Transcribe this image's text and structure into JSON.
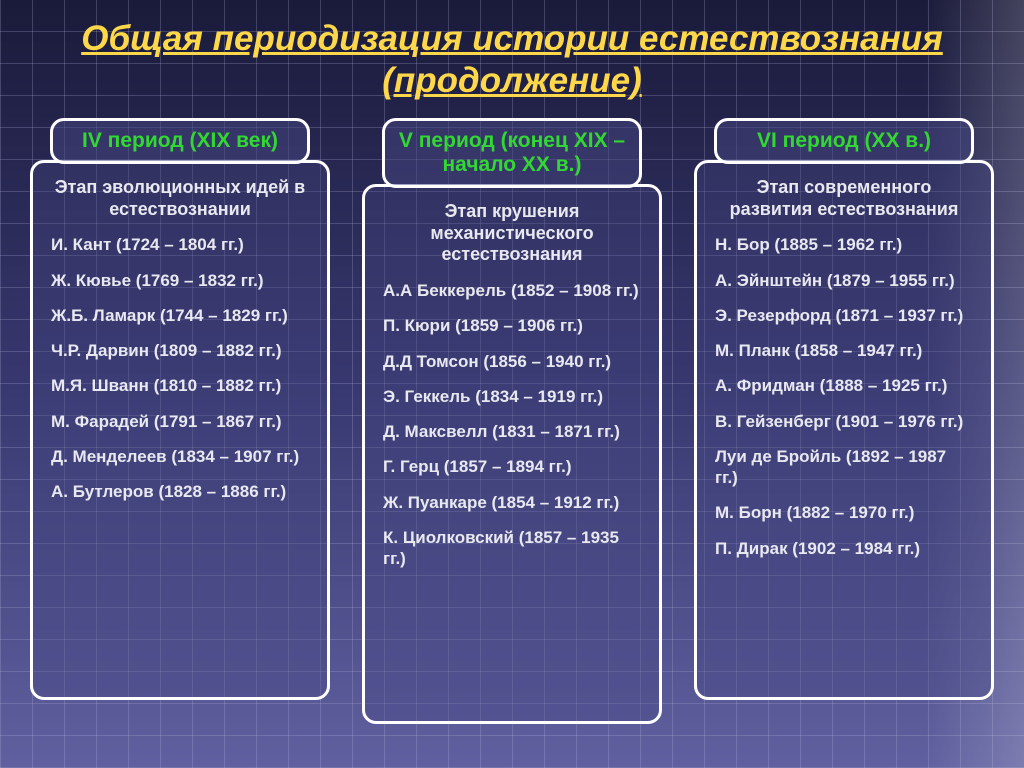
{
  "title": "Общая периодизация истории естествознания (продолжение)",
  "colors": {
    "title": "#ffd84a",
    "header_text": "#32d832",
    "body_text": "#e8e8f0",
    "border": "#ffffff"
  },
  "columns": [
    {
      "header": "IV период (XIX век)",
      "stage": "Этап эволюционных идей в естествознании",
      "items": [
        "И. Кант (1724 – 1804 гг.)",
        "Ж. Кювье (1769 – 1832 гг.)",
        "Ж.Б. Ламарк (1744 – 1829 гг.)",
        "Ч.Р. Дарвин (1809 – 1882 гг.)",
        "М.Я. Шванн (1810 – 1882 гг.)",
        "М. Фарадей (1791 – 1867 гг.)",
        "Д. Менделеев (1834 – 1907 гг.)",
        "А. Бутлеров (1828 – 1886 гг.)"
      ]
    },
    {
      "header": "V период (конец XIX – начало XX в.)",
      "stage": "Этап крушения механистического естествознания",
      "items": [
        "А.А Беккерель (1852 – 1908 гг.)",
        "П. Кюри (1859 – 1906 гг.)",
        "Д.Д Томсон (1856 – 1940 гг.)",
        "Э. Геккель (1834 – 1919 гг.)",
        "Д. Максвелл (1831 – 1871 гг.)",
        "Г. Герц (1857 – 1894 гг.)",
        "Ж. Пуанкаре (1854 – 1912 гг.)",
        "К. Циолковский (1857 – 1935 гг.)"
      ]
    },
    {
      "header": "VI период (XX в.)",
      "stage": "Этап современного развития естествознания",
      "items": [
        "Н. Бор (1885 – 1962 гг.)",
        "А. Эйнштейн (1879 – 1955 гг.)",
        "Э. Резерфорд (1871 – 1937 гг.)",
        "М. Планк (1858 – 1947 гг.)",
        "А. Фридман (1888 – 1925 гг.)",
        "В. Гейзенберг (1901 – 1976 гг.)",
        "Луи де Бройль (1892 – 1987 гг.)",
        "М. Борн (1882 – 1970 гг.)",
        "П. Дирак (1902 – 1984 гг.)"
      ]
    }
  ]
}
